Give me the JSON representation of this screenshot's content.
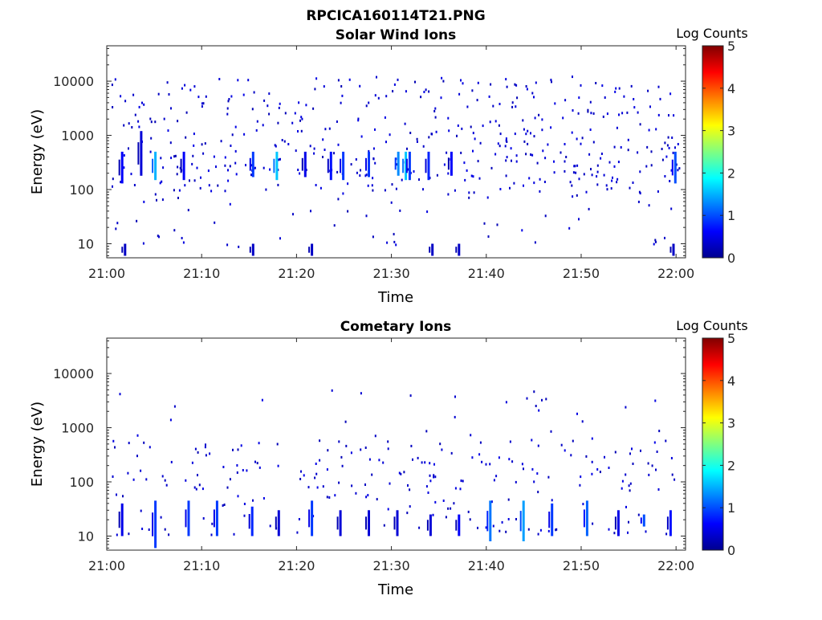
{
  "figure": {
    "filename": "RPCICA160114T21.PNG"
  },
  "colorscale": {
    "stops": [
      "#00008f",
      "#0000ff",
      "#0080ff",
      "#00ffff",
      "#80ff80",
      "#ffff00",
      "#ff8000",
      "#ff0000",
      "#800000"
    ],
    "min": 0,
    "max": 5
  },
  "chart_data": [
    {
      "type": "heatmap",
      "title": "Solar Wind Ions",
      "xlabel": "Time",
      "ylabel": "Energy (eV)",
      "colorbar_label": "Log Counts",
      "colorbar_ticks": [
        "0",
        "1",
        "2",
        "3",
        "4",
        "5"
      ],
      "y_scale": "log",
      "ylim": [
        5.5,
        45000
      ],
      "xlim": [
        "21:00",
        "22:01"
      ],
      "x_ticks": [
        "21:00",
        "21:10",
        "21:20",
        "21:30",
        "21:40",
        "21:50",
        "22:00"
      ],
      "y_ticks": [
        "10",
        "100",
        "1000",
        "10000"
      ],
      "grid": false,
      "samples_min": [
        1.0,
        1.5,
        3.5,
        3.8,
        5.0,
        5.4,
        6.2,
        7.5,
        8.0,
        9.3,
        12.5,
        14.8,
        15.3,
        15.6,
        17.8,
        20.8,
        21.5,
        23.5,
        24.8,
        26.0,
        27.5,
        28.8,
        30.6,
        31.4,
        31.8,
        33.8,
        36.2,
        39.0,
        40.2,
        42.5,
        45.0,
        46.2,
        47.6,
        51.5,
        52.3,
        55.8,
        58.0,
        59.8
      ],
      "bands": [
        {
          "t": 1.5,
          "e_low": 130,
          "e_high": 500,
          "log_counts": 0.6
        },
        {
          "t": 3.5,
          "e_low": 180,
          "e_high": 1200,
          "log_counts": 0.4
        },
        {
          "t": 5.0,
          "e_low": 150,
          "e_high": 500,
          "log_counts": 1.5
        },
        {
          "t": 8.0,
          "e_low": 150,
          "e_high": 500,
          "log_counts": 0.6
        },
        {
          "t": 15.3,
          "e_low": 170,
          "e_high": 500,
          "log_counts": 0.9
        },
        {
          "t": 17.8,
          "e_low": 150,
          "e_high": 500,
          "log_counts": 1.6
        },
        {
          "t": 20.8,
          "e_low": 170,
          "e_high": 500,
          "log_counts": 0.5
        },
        {
          "t": 23.5,
          "e_low": 150,
          "e_high": 500,
          "log_counts": 0.7
        },
        {
          "t": 24.8,
          "e_low": 150,
          "e_high": 500,
          "log_counts": 0.9
        },
        {
          "t": 27.5,
          "e_low": 170,
          "e_high": 500,
          "log_counts": 0.9
        },
        {
          "t": 30.6,
          "e_low": 180,
          "e_high": 500,
          "log_counts": 1.3
        },
        {
          "t": 31.4,
          "e_low": 150,
          "e_high": 500,
          "log_counts": 1.6
        },
        {
          "t": 31.8,
          "e_low": 150,
          "e_high": 500,
          "log_counts": 0.9
        },
        {
          "t": 33.8,
          "e_low": 150,
          "e_high": 500,
          "log_counts": 0.8
        },
        {
          "t": 36.2,
          "e_low": 180,
          "e_high": 500,
          "log_counts": 0.6
        },
        {
          "t": 59.8,
          "e_low": 130,
          "e_high": 500,
          "log_counts": 1.0
        },
        {
          "t": 1.8,
          "e_low": 6,
          "e_high": 10,
          "log_counts": 0.3
        },
        {
          "t": 15.3,
          "e_low": 6,
          "e_high": 10,
          "log_counts": 0.3
        },
        {
          "t": 21.5,
          "e_low": 6,
          "e_high": 10,
          "log_counts": 0.3
        },
        {
          "t": 34.2,
          "e_low": 6,
          "e_high": 10,
          "log_counts": 0.3
        },
        {
          "t": 37.0,
          "e_low": 6,
          "e_high": 10,
          "log_counts": 0.3
        },
        {
          "t": 59.6,
          "e_low": 6,
          "e_high": 10,
          "log_counts": 0.3
        }
      ]
    },
    {
      "type": "heatmap",
      "title": "Cometary Ions",
      "xlabel": "Time",
      "ylabel": "Energy (eV)",
      "colorbar_label": "Log Counts",
      "colorbar_ticks": [
        "0",
        "1",
        "2",
        "3",
        "4",
        "5"
      ],
      "y_scale": "log",
      "ylim": [
        5.5,
        45000
      ],
      "xlim": [
        "21:00",
        "22:01"
      ],
      "x_ticks": [
        "21:00",
        "21:10",
        "21:20",
        "21:30",
        "21:40",
        "21:50",
        "22:00"
      ],
      "y_ticks": [
        "10",
        "100",
        "1000",
        "10000"
      ],
      "grid": false,
      "samples_min": [
        1.5,
        2.0,
        3.5,
        4.8,
        5.0,
        8.0,
        8.5,
        11.2,
        11.5,
        14.8,
        15.2,
        18.0,
        18.5,
        21.0,
        21.5,
        24.2,
        25.0,
        27.5,
        30.5,
        31.0,
        34.0,
        36.5,
        37.0,
        40.0,
        40.5,
        43.0,
        43.8,
        46.5,
        47.0,
        50.2,
        50.8,
        53.8,
        56.5,
        59.0,
        59.5
      ],
      "bands": [
        {
          "t": 1.5,
          "e_low": 10,
          "e_high": 40,
          "log_counts": 0.5
        },
        {
          "t": 5.0,
          "e_low": 6,
          "e_high": 45,
          "log_counts": 0.9
        },
        {
          "t": 8.5,
          "e_low": 10,
          "e_high": 45,
          "log_counts": 0.9
        },
        {
          "t": 11.5,
          "e_low": 10,
          "e_high": 45,
          "log_counts": 0.9
        },
        {
          "t": 15.2,
          "e_low": 10,
          "e_high": 35,
          "log_counts": 0.8
        },
        {
          "t": 18.0,
          "e_low": 10,
          "e_high": 30,
          "log_counts": 0.4
        },
        {
          "t": 21.5,
          "e_low": 10,
          "e_high": 45,
          "log_counts": 0.9
        },
        {
          "t": 24.5,
          "e_low": 10,
          "e_high": 30,
          "log_counts": 0.4
        },
        {
          "t": 27.5,
          "e_low": 10,
          "e_high": 30,
          "log_counts": 0.4
        },
        {
          "t": 30.5,
          "e_low": 10,
          "e_high": 30,
          "log_counts": 0.4
        },
        {
          "t": 34.0,
          "e_low": 10,
          "e_high": 25,
          "log_counts": 0.4
        },
        {
          "t": 37.0,
          "e_low": 10,
          "e_high": 25,
          "log_counts": 0.6
        },
        {
          "t": 40.3,
          "e_low": 8,
          "e_high": 45,
          "log_counts": 1.2
        },
        {
          "t": 43.8,
          "e_low": 8,
          "e_high": 45,
          "log_counts": 1.4
        },
        {
          "t": 46.8,
          "e_low": 10,
          "e_high": 40,
          "log_counts": 0.9
        },
        {
          "t": 50.5,
          "e_low": 10,
          "e_high": 45,
          "log_counts": 1.1
        },
        {
          "t": 53.8,
          "e_low": 10,
          "e_high": 30,
          "log_counts": 0.5
        },
        {
          "t": 56.5,
          "e_low": 15,
          "e_high": 25,
          "log_counts": 1.0
        },
        {
          "t": 59.3,
          "e_low": 10,
          "e_high": 30,
          "log_counts": 0.7
        }
      ]
    }
  ]
}
